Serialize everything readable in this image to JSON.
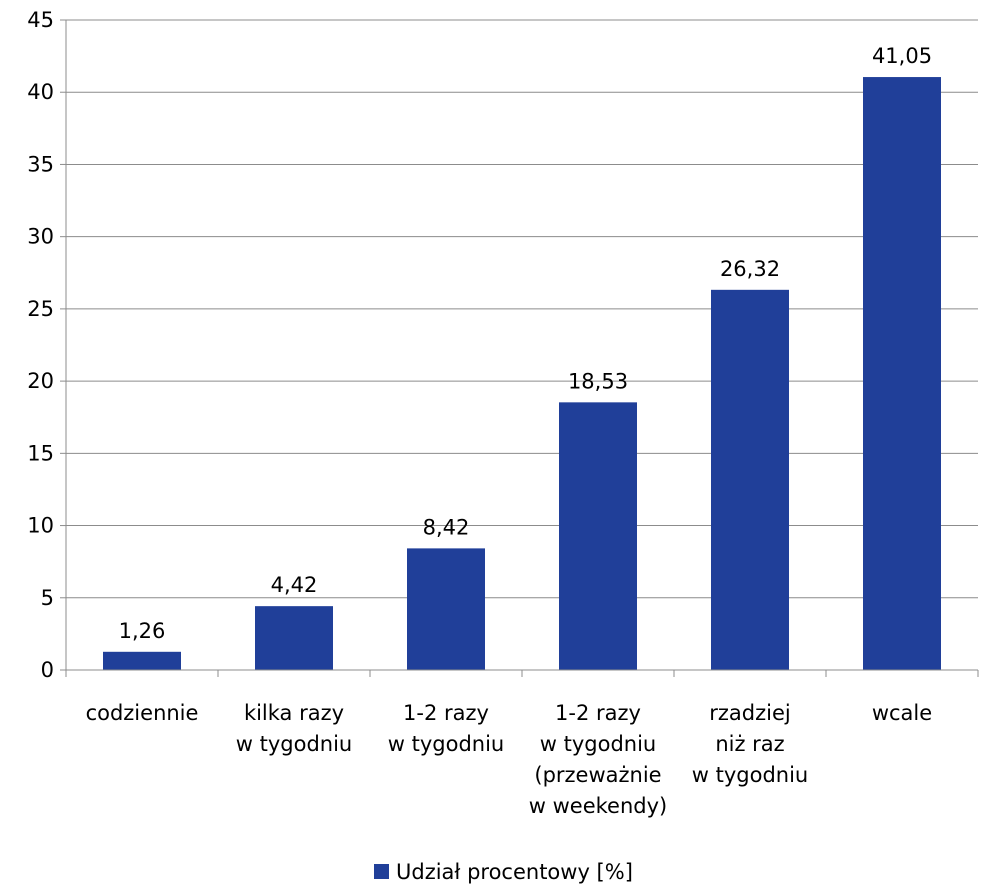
{
  "chart_data": {
    "type": "bar",
    "categories": [
      [
        "codziennie"
      ],
      [
        "kilka razy",
        "w tygodniu"
      ],
      [
        "1-2 razy",
        "w tygodniu"
      ],
      [
        "1-2 razy",
        "w tygodniu",
        "(przeważnie",
        "w weekendy)"
      ],
      [
        "rzadziej",
        "niż raz",
        "w tygodniu"
      ],
      [
        "wcale"
      ]
    ],
    "series": [
      {
        "name": "Udział procentowy [%]",
        "values": [
          1.26,
          4.42,
          8.42,
          18.53,
          26.32,
          41.05
        ],
        "labels": [
          "1,26",
          "4,42",
          "8,42",
          "18,53",
          "26,32",
          "41,05"
        ],
        "color": "#203F99"
      }
    ],
    "yticks": [
      "0",
      "5",
      "10",
      "15",
      "20",
      "25",
      "30",
      "35",
      "40",
      "45"
    ],
    "ylim": [
      0,
      45
    ],
    "grid": true,
    "legend": "bottom"
  }
}
